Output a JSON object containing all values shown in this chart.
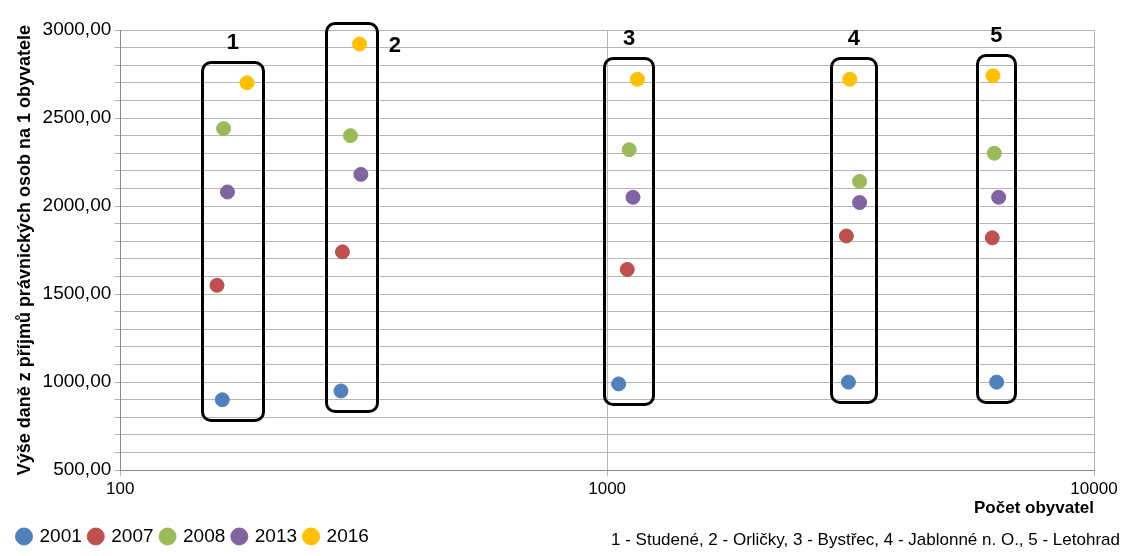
{
  "chart_data": {
    "type": "scatter",
    "xlabel": "Počet obyvatel",
    "ylabel": "Výše daně z příjmů právnických osob na 1 obyvatele",
    "log": "x",
    "grid": true,
    "legend": "bottom",
    "marker": "circle",
    "xlim": [
      100,
      10000
    ],
    "xticks": [
      100,
      1000,
      10000
    ],
    "ylim": [
      500,
      3000
    ],
    "yticks": [
      {
        "value": 500,
        "label": "500,00"
      },
      {
        "value": 600,
        "label": null
      },
      {
        "value": 700,
        "label": null
      },
      {
        "value": 800,
        "label": null
      },
      {
        "value": 900,
        "label": null
      },
      {
        "value": 1000,
        "label": "1000,00"
      },
      {
        "value": 1100,
        "label": null
      },
      {
        "value": 1200,
        "label": null
      },
      {
        "value": 1300,
        "label": null
      },
      {
        "value": 1400,
        "label": null
      },
      {
        "value": 1500,
        "label": "1500,00"
      },
      {
        "value": 1600,
        "label": null
      },
      {
        "value": 1700,
        "label": null
      },
      {
        "value": 1800,
        "label": null
      },
      {
        "value": 1900,
        "label": null
      },
      {
        "value": 2000,
        "label": "2000,00"
      },
      {
        "value": 2100,
        "label": null
      },
      {
        "value": 2200,
        "label": null
      },
      {
        "value": 2300,
        "label": null
      },
      {
        "value": 2400,
        "label": null
      },
      {
        "value": 2500,
        "label": "2500,00"
      },
      {
        "value": 2600,
        "label": null
      },
      {
        "value": 2700,
        "label": null
      },
      {
        "value": 2800,
        "label": null
      },
      {
        "value": 2900,
        "label": null
      },
      {
        "value": 3000,
        "label": "3000,00"
      }
    ],
    "series": [
      {
        "name": "2001",
        "color": "#4f81bd",
        "x": [
          162,
          284,
          1056,
          3130,
          6310
        ],
        "values": [
          900,
          950,
          990,
          1000,
          1000
        ]
      },
      {
        "name": "2007",
        "color": "#c0504d",
        "x": [
          158,
          286,
          1100,
          3100,
          6180
        ],
        "values": [
          1550,
          1740,
          1640,
          1830,
          1820
        ]
      },
      {
        "name": "2008",
        "color": "#9bbb59",
        "x": [
          163,
          297,
          1110,
          3300,
          6240
        ],
        "values": [
          2440,
          2400,
          2320,
          2140,
          2300
        ]
      },
      {
        "name": "2013",
        "color": "#8064a2",
        "x": [
          166,
          312,
          1130,
          3300,
          6370
        ],
        "values": [
          2080,
          2180,
          2050,
          2020,
          2050
        ]
      },
      {
        "name": "2016",
        "color": "#ffc000",
        "x": [
          182,
          310,
          1154,
          3150,
          6200
        ],
        "values": [
          2700,
          2920,
          2720,
          2720,
          2740
        ]
      }
    ],
    "annotations": [
      "1",
      "2",
      "3",
      "4",
      "5",
      "1 - Studené, 2 - Orličky, 3 - Bystřec, 4 - Jablonné n. O., 5 - Letohrad"
    ]
  }
}
